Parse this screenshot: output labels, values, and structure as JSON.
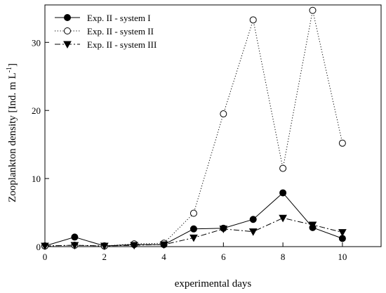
{
  "chart_data": {
    "type": "line",
    "title": "",
    "xlabel": "experimental days",
    "ylabel_main": "Zooplankton density [Ind. m L",
    "ylabel_sup": "-1",
    "ylabel_end": "]",
    "xlim": [
      0,
      11.3
    ],
    "ylim": [
      0,
      35.5
    ],
    "xticks": [
      0,
      2,
      4,
      6,
      8,
      10
    ],
    "xtick_labels": [
      "0",
      "2",
      "4",
      "6",
      "8",
      "10"
    ],
    "yticks": [
      0,
      10,
      20,
      30
    ],
    "ytick_labels": [
      "0",
      "10",
      "20",
      "30"
    ],
    "x": [
      0,
      1,
      2,
      3,
      4,
      5,
      6,
      7,
      8,
      9,
      10
    ],
    "legend_position": "top-left",
    "series": [
      {
        "name": "Exp. II - system I",
        "values": [
          0.1,
          1.4,
          0.1,
          0.3,
          0.3,
          2.6,
          2.7,
          4.0,
          7.9,
          2.8,
          1.2
        ],
        "marker": "circle-filled",
        "line_style": "solid",
        "color": "#000000"
      },
      {
        "name": "Exp. II - system II",
        "values": [
          0.1,
          0.2,
          0.1,
          0.4,
          0.5,
          4.9,
          19.5,
          33.3,
          11.5,
          34.7,
          15.2
        ],
        "marker": "circle-open",
        "line_style": "dotted",
        "color": "#000000"
      },
      {
        "name": "Exp. II - system III",
        "values": [
          0.1,
          0.2,
          0.1,
          0.2,
          0.3,
          1.3,
          2.6,
          2.2,
          4.2,
          3.2,
          2.1
        ],
        "marker": "triangle-down-filled",
        "line_style": "dashdot",
        "color": "#000000"
      }
    ]
  }
}
